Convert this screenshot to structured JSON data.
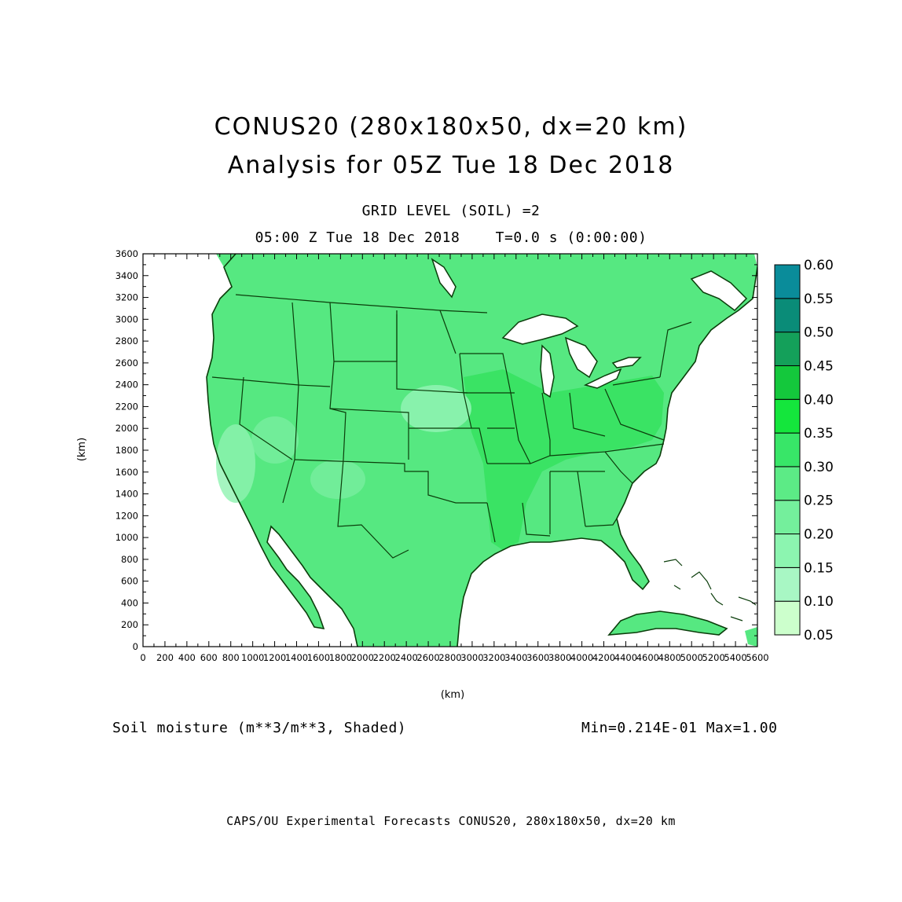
{
  "header": {
    "title_line1": "CONUS20 (280x180x50, dx=20 km)",
    "title_line2": "Analysis for 05Z Tue 18 Dec 2018",
    "grid_level": "GRID LEVEL (SOIL) =2",
    "valid_time": "05:00 Z Tue 18 Dec 2018    T=0.0 s (0:00:00)"
  },
  "axes": {
    "x_label": "(km)",
    "y_label": "(km)",
    "x_range": [
      0,
      5600
    ],
    "y_range": [
      0,
      3600
    ],
    "x_ticks": [
      "0",
      "200",
      "400",
      "600",
      "800",
      "1000",
      "1200",
      "1400",
      "1600",
      "1800",
      "2000",
      "2200",
      "2400",
      "2600",
      "2800",
      "3000",
      "3200",
      "3400",
      "3600",
      "3800",
      "4000",
      "4200",
      "4400",
      "4600",
      "4800",
      "5000",
      "5200",
      "5400",
      "5600"
    ],
    "y_ticks": [
      "0",
      "200",
      "400",
      "600",
      "800",
      "1000",
      "1200",
      "1400",
      "1600",
      "1800",
      "2000",
      "2200",
      "2400",
      "2600",
      "2800",
      "3000",
      "3200",
      "3400",
      "3600"
    ]
  },
  "colorbar": {
    "levels": [
      "0.05",
      "0.10",
      "0.15",
      "0.20",
      "0.25",
      "0.30",
      "0.35",
      "0.40",
      "0.45",
      "0.50",
      "0.55",
      "0.60"
    ],
    "colors": [
      "#ccffcc",
      "#a8f7c4",
      "#8cf5b0",
      "#74ef9c",
      "#5ceb86",
      "#38e668",
      "#14e63c",
      "#14c83c",
      "#14a05a",
      "#0a8c78",
      "#0a8c9a",
      "#1464e6"
    ]
  },
  "field": {
    "name": "Soil moisture (m**3/m**3, Shaded)",
    "minmax": "Min=0.214E-01  Max=1.00",
    "base_color": "#55ea80",
    "outline_color": "#0b3d0b"
  },
  "footer": "CAPS/OU Experimental Forecasts  CONUS20, 280x180x50, dx=20 km"
}
